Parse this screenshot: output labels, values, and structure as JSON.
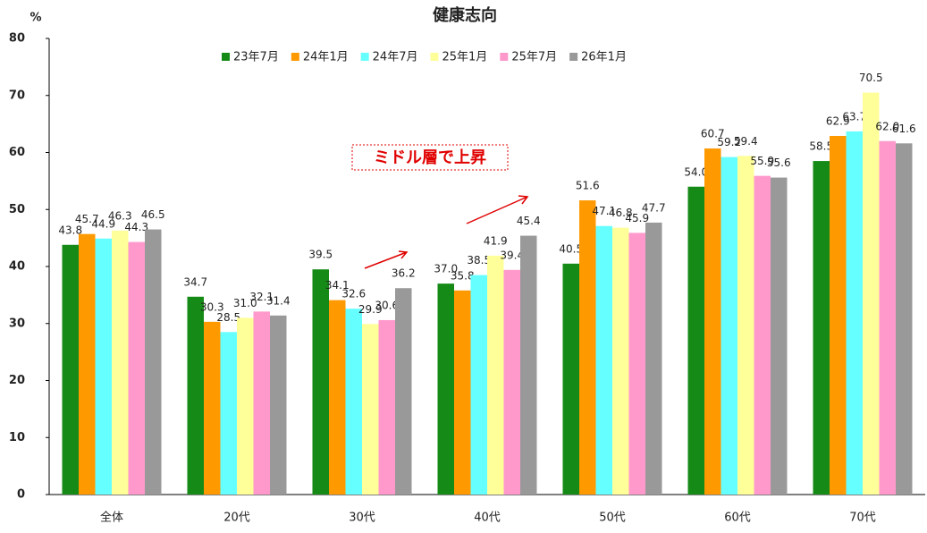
{
  "chart_data": {
    "type": "bar",
    "title": "健康志向",
    "y_label": "%",
    "annotation": "ミドル層で上昇",
    "categories": [
      "全体",
      "20代",
      "30代",
      "40代",
      "50代",
      "60代",
      "70代"
    ],
    "series": [
      {
        "name": "23年7月",
        "color": "#168a16",
        "values": [
          43.8,
          34.7,
          39.5,
          37.0,
          40.5,
          54.0,
          58.5
        ],
        "value_labels": [
          "43.8",
          "34.7",
          "39.5",
          "37.0",
          "40.5",
          "54.0",
          "58.5"
        ]
      },
      {
        "name": "24年1月",
        "color": "#ff9900",
        "values": [
          45.7,
          30.3,
          34.1,
          35.8,
          51.6,
          60.7,
          62.9
        ],
        "value_labels": [
          "45.7",
          "30.3",
          "34.1",
          "35.8",
          "51.6",
          "60.7",
          "62.9"
        ]
      },
      {
        "name": "24年7月",
        "color": "#66ffff",
        "values": [
          44.9,
          28.5,
          32.6,
          38.5,
          47.1,
          59.2,
          63.7
        ],
        "value_labels": [
          "44.9",
          "28.5",
          "32.6",
          "38.5",
          "47.1",
          "59.2",
          "63.7"
        ]
      },
      {
        "name": "25年1月",
        "color": "#ffff99",
        "values": [
          46.3,
          31.0,
          29.9,
          41.9,
          46.8,
          59.4,
          70.5
        ],
        "value_labels": [
          "46.3",
          "31.0",
          "29.9",
          "41.9",
          "46.8",
          "59.4",
          "70.5"
        ]
      },
      {
        "name": "25年7月",
        "color": "#ff99cc",
        "values": [
          44.3,
          32.1,
          30.6,
          39.4,
          45.9,
          55.9,
          62.0
        ],
        "value_labels": [
          "44.3",
          "32.1",
          "30.6",
          "39.4",
          "45.9",
          "55.9",
          "62.0"
        ]
      },
      {
        "name": "26年1月",
        "color": "#999999",
        "values": [
          46.5,
          31.4,
          36.2,
          45.4,
          47.7,
          55.6,
          61.6
        ],
        "value_labels": [
          "46.5",
          "31.4",
          "36.2",
          "45.4",
          "47.7",
          "55.6",
          "61.6"
        ]
      }
    ],
    "ylim": [
      0,
      80
    ],
    "yticks": [
      0,
      10,
      20,
      30,
      40,
      50,
      60,
      70,
      80
    ],
    "grid": false
  }
}
